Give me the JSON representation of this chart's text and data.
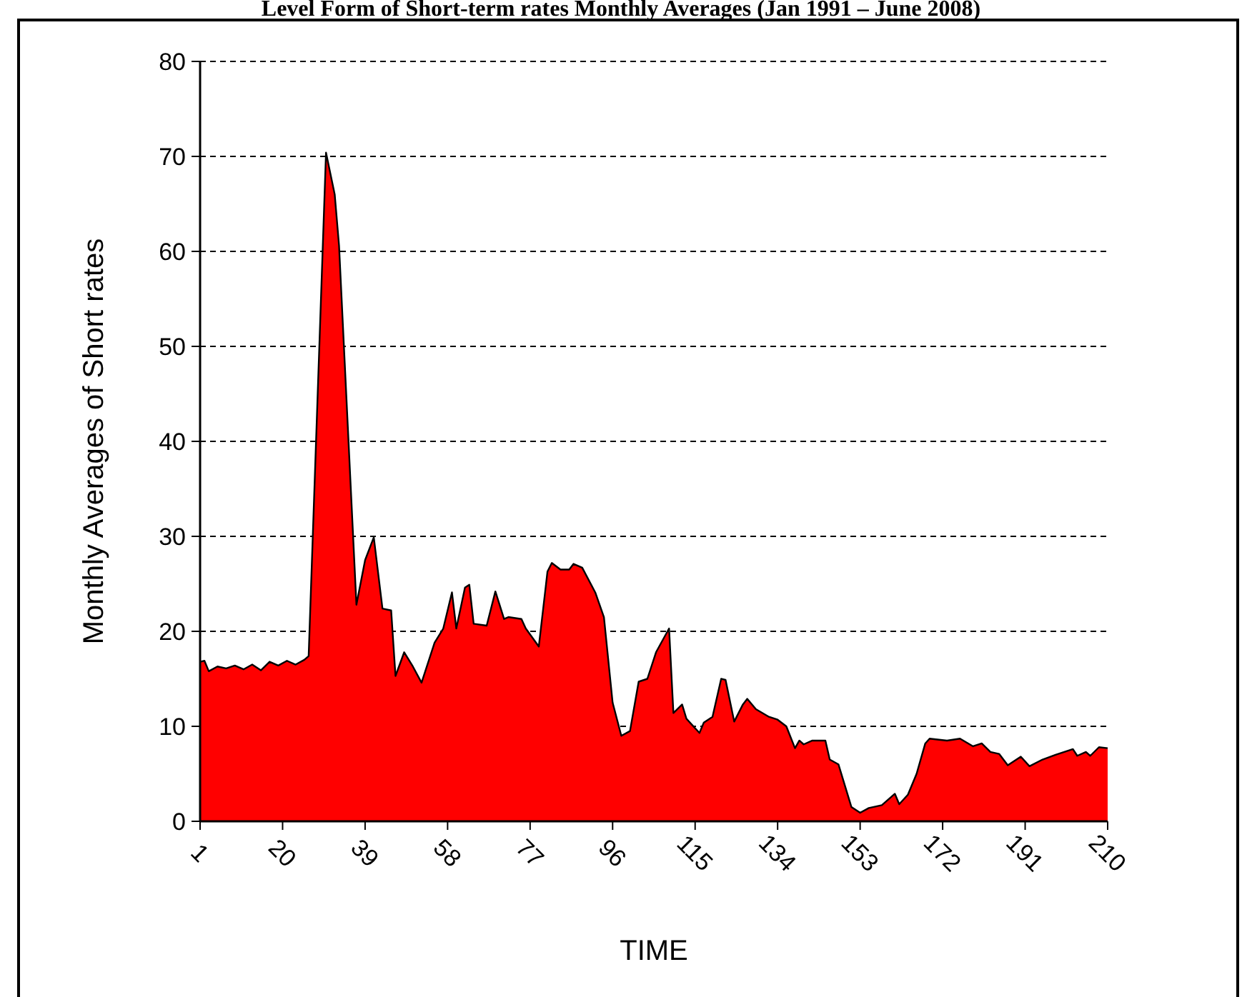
{
  "chart_data": {
    "type": "area",
    "title": "Level Form of Short-term rates Monthly Averages (Jan 1991 – June 2008)",
    "xlabel": "TIME",
    "ylabel": "Monthly Averages of Short rates",
    "xlim": [
      1,
      210
    ],
    "xticks": [
      1,
      20,
      39,
      58,
      77,
      96,
      115,
      134,
      153,
      172,
      191,
      210
    ],
    "ylim": [
      0,
      80
    ],
    "yticks": [
      0,
      10,
      20,
      30,
      40,
      50,
      60,
      70,
      80
    ],
    "grid": "y",
    "series": [
      {
        "color": "#ff0000",
        "x": [
          1,
          2,
          3,
          5,
          7,
          9,
          11,
          13,
          15,
          17,
          19,
          21,
          23,
          25,
          26,
          30,
          32,
          33,
          37,
          39,
          41,
          43,
          45,
          46,
          48,
          50,
          52,
          55,
          57,
          59,
          60,
          62,
          63,
          64,
          67,
          69,
          71,
          72,
          75,
          76,
          79,
          81,
          82,
          84,
          86,
          87,
          89,
          92,
          94,
          96,
          98,
          100,
          102,
          104,
          106,
          109,
          110,
          112,
          113,
          116,
          117,
          119,
          121,
          122,
          124,
          126,
          127,
          129,
          132,
          134,
          136,
          138,
          139,
          140,
          142,
          145,
          146,
          148,
          151,
          153,
          155,
          158,
          161,
          162,
          164,
          166,
          168,
          169,
          173,
          176,
          179,
          181,
          183,
          185,
          187,
          190,
          192,
          195,
          198,
          200,
          202,
          203,
          205,
          206,
          208,
          210
        ],
        "values": [
          16.8,
          16.9,
          15.8,
          16.3,
          16.1,
          16.4,
          16.0,
          16.5,
          15.9,
          16.8,
          16.4,
          16.9,
          16.5,
          17.0,
          17.4,
          70.4,
          66.0,
          60.6,
          22.8,
          27.5,
          29.9,
          22.4,
          22.2,
          15.3,
          17.8,
          16.3,
          14.6,
          18.8,
          20.3,
          24.1,
          20.3,
          24.6,
          24.9,
          20.8,
          20.6,
          24.2,
          21.3,
          21.5,
          21.3,
          20.3,
          18.4,
          26.3,
          27.2,
          26.5,
          26.5,
          27.1,
          26.7,
          24.1,
          21.5,
          12.5,
          9.0,
          9.5,
          14.7,
          15.0,
          17.8,
          20.3,
          11.4,
          12.3,
          10.8,
          9.3,
          10.4,
          11.0,
          15.0,
          14.9,
          10.5,
          12.3,
          12.9,
          11.8,
          11.0,
          10.7,
          10.0,
          7.7,
          8.5,
          8.1,
          8.5,
          8.5,
          6.5,
          6.0,
          1.5,
          0.9,
          1.4,
          1.7,
          2.9,
          1.8,
          2.8,
          5.0,
          8.2,
          8.7,
          8.5,
          8.7,
          7.9,
          8.2,
          7.3,
          7.1,
          5.9,
          6.8,
          5.8,
          6.5,
          7.0,
          7.3,
          7.6,
          6.9,
          7.3,
          6.9,
          7.8,
          7.7
        ]
      }
    ]
  }
}
